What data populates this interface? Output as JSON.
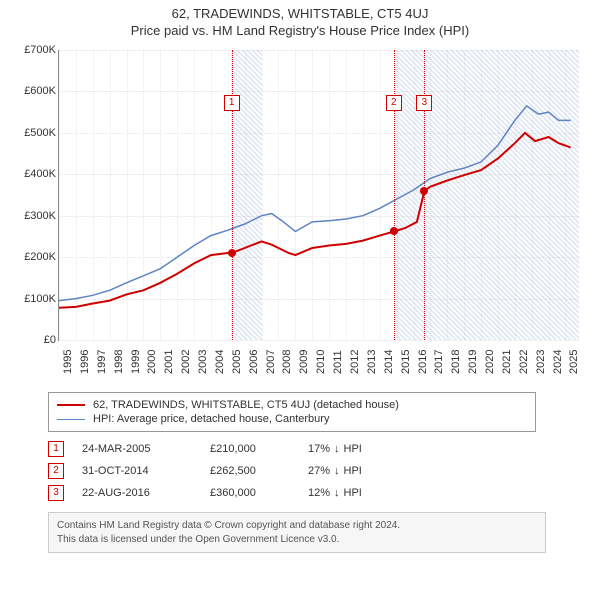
{
  "titles": {
    "line1": "62, TRADEWINDS, WHITSTABLE, CT5 4UJ",
    "line2": "Price paid vs. HM Land Registry's House Price Index (HPI)"
  },
  "chart": {
    "type": "line",
    "x_start": 1995,
    "x_end": 2025.8,
    "x_ticks": [
      1995,
      1996,
      1997,
      1998,
      1999,
      2000,
      2001,
      2002,
      2003,
      2004,
      2005,
      2006,
      2007,
      2008,
      2009,
      2010,
      2011,
      2012,
      2013,
      2014,
      2015,
      2016,
      2017,
      2018,
      2019,
      2020,
      2021,
      2022,
      2023,
      2024,
      2025
    ],
    "y_min": 0,
    "y_max": 700,
    "y_ticks": [
      0,
      100,
      200,
      300,
      400,
      500,
      600,
      700
    ],
    "y_tick_labels": [
      "£0",
      "£100K",
      "£200K",
      "£300K",
      "£400K",
      "£500K",
      "£600K",
      "£700K"
    ],
    "grid_color": "#f1f1f1",
    "axis_color": "#888888",
    "background_color": "#ffffff",
    "hatch_color_rgba": "rgba(120,150,200,0.22)",
    "hatch_zones": [
      {
        "from": 2005.2,
        "to": 2007.0
      },
      {
        "from": 2014.9,
        "to": 2025.8
      }
    ],
    "series": [
      {
        "name": "property",
        "color": "#d00000",
        "width": 2,
        "data": [
          [
            1995.0,
            78
          ],
          [
            1996.0,
            80
          ],
          [
            1997.0,
            88
          ],
          [
            1998.0,
            95
          ],
          [
            1999.0,
            110
          ],
          [
            2000.0,
            120
          ],
          [
            2001.0,
            138
          ],
          [
            2002.0,
            160
          ],
          [
            2003.0,
            185
          ],
          [
            2004.0,
            205
          ],
          [
            2005.0,
            210
          ],
          [
            2005.23,
            210
          ],
          [
            2006.0,
            222
          ],
          [
            2007.0,
            238
          ],
          [
            2007.6,
            230
          ],
          [
            2008.0,
            222
          ],
          [
            2008.6,
            210
          ],
          [
            2009.0,
            205
          ],
          [
            2010.0,
            222
          ],
          [
            2011.0,
            228
          ],
          [
            2012.0,
            232
          ],
          [
            2013.0,
            240
          ],
          [
            2014.0,
            252
          ],
          [
            2014.83,
            262
          ],
          [
            2015.5,
            270
          ],
          [
            2016.2,
            285
          ],
          [
            2016.64,
            360
          ],
          [
            2017.0,
            370
          ],
          [
            2018.0,
            385
          ],
          [
            2019.0,
            398
          ],
          [
            2020.0,
            410
          ],
          [
            2021.0,
            438
          ],
          [
            2022.0,
            475
          ],
          [
            2022.6,
            500
          ],
          [
            2023.2,
            480
          ],
          [
            2024.0,
            490
          ],
          [
            2024.6,
            475
          ],
          [
            2025.3,
            465
          ]
        ]
      },
      {
        "name": "hpi",
        "color": "#5d84c3",
        "width": 1.5,
        "data": [
          [
            1995.0,
            95
          ],
          [
            1996.0,
            100
          ],
          [
            1997.0,
            108
          ],
          [
            1998.0,
            120
          ],
          [
            1999.0,
            138
          ],
          [
            2000.0,
            155
          ],
          [
            2001.0,
            172
          ],
          [
            2002.0,
            200
          ],
          [
            2003.0,
            228
          ],
          [
            2004.0,
            252
          ],
          [
            2005.0,
            265
          ],
          [
            2006.0,
            280
          ],
          [
            2007.0,
            300
          ],
          [
            2007.6,
            305
          ],
          [
            2008.2,
            288
          ],
          [
            2009.0,
            262
          ],
          [
            2010.0,
            285
          ],
          [
            2011.0,
            288
          ],
          [
            2012.0,
            292
          ],
          [
            2013.0,
            300
          ],
          [
            2014.0,
            318
          ],
          [
            2015.0,
            340
          ],
          [
            2016.0,
            362
          ],
          [
            2017.0,
            390
          ],
          [
            2018.0,
            405
          ],
          [
            2019.0,
            415
          ],
          [
            2020.0,
            430
          ],
          [
            2021.0,
            470
          ],
          [
            2022.0,
            530
          ],
          [
            2022.7,
            565
          ],
          [
            2023.4,
            545
          ],
          [
            2024.0,
            550
          ],
          [
            2024.6,
            530
          ],
          [
            2025.3,
            530
          ]
        ]
      }
    ],
    "sale_markers": [
      {
        "badge": "1",
        "date_frac": 2005.23,
        "price": 210,
        "badge_y": 45
      },
      {
        "badge": "2",
        "date_frac": 2014.83,
        "price": 262,
        "badge_y": 45
      },
      {
        "badge": "3",
        "date_frac": 2016.64,
        "price": 360,
        "badge_y": 45
      }
    ]
  },
  "legend": {
    "items": [
      {
        "color": "#d00000",
        "width": 2,
        "label": "62, TRADEWINDS, WHITSTABLE, CT5 4UJ (detached house)"
      },
      {
        "color": "#5d84c3",
        "width": 1.5,
        "label": "HPI: Average price, detached house, Canterbury"
      }
    ]
  },
  "transactions": [
    {
      "badge": "1",
      "date": "24-MAR-2005",
      "price": "£210,000",
      "rel_pct": "17%",
      "rel_dir": "down",
      "rel_label": "HPI"
    },
    {
      "badge": "2",
      "date": "31-OCT-2014",
      "price": "£262,500",
      "rel_pct": "27%",
      "rel_dir": "down",
      "rel_label": "HPI"
    },
    {
      "badge": "3",
      "date": "22-AUG-2016",
      "price": "£360,000",
      "rel_pct": "12%",
      "rel_dir": "down",
      "rel_label": "HPI"
    }
  ],
  "footer": {
    "line1": "Contains HM Land Registry data © Crown copyright and database right 2024.",
    "line2": "This data is licensed under the Open Government Licence v3.0."
  },
  "glyphs": {
    "down": "↓",
    "up": "↑"
  }
}
